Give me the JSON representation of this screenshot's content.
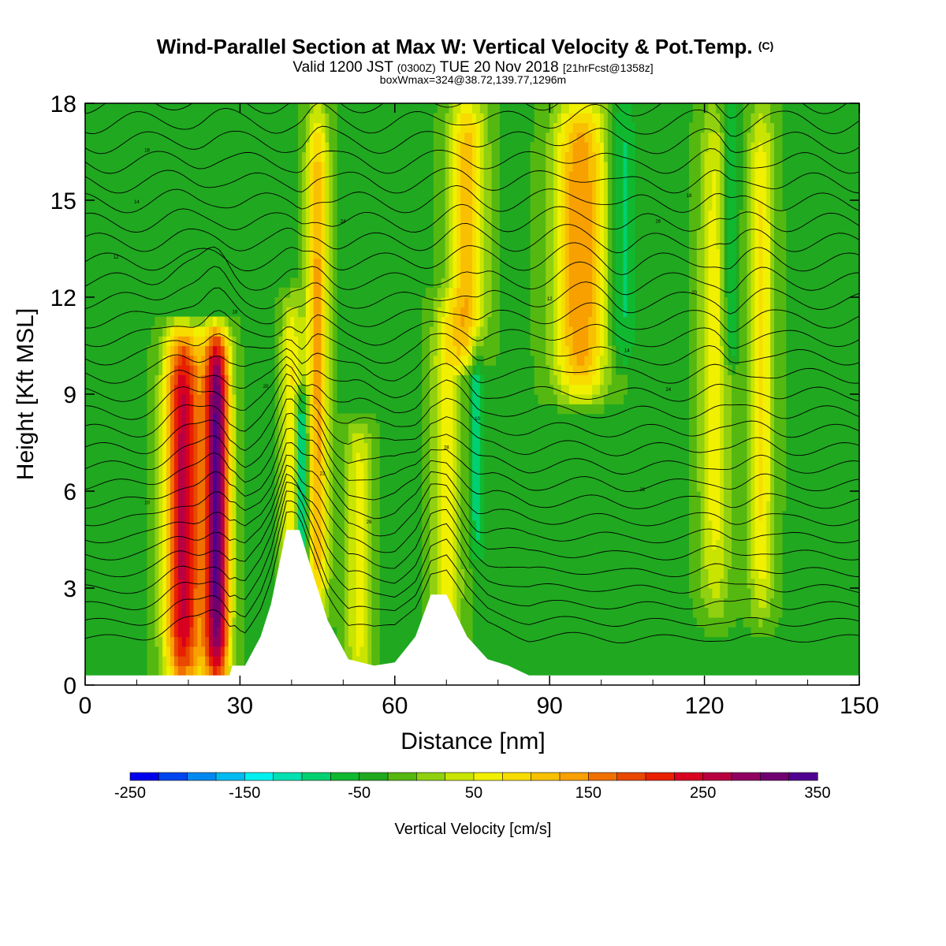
{
  "header": {
    "title": "Wind-Parallel Section at Max W: Vertical Velocity & Pot.Temp.",
    "copyright_mark": "(C)",
    "valid_prefix": "Valid 1200 JST",
    "valid_utc": "(0300Z)",
    "valid_date": "TUE 20 Nov 2018",
    "forecast_info": "[21hrFcst@1358z]",
    "box_info": "boxWmax=324@38.72,139.77,1296m"
  },
  "colorbar": {
    "label": "Vertical Velocity [cm/s]",
    "tick_labels": [
      "-250",
      "-150",
      "-50",
      "50",
      "150",
      "250",
      "350"
    ],
    "colors": [
      "#0000ee",
      "#0044ee",
      "#0088ee",
      "#00bbf0",
      "#00f0f0",
      "#00e0b0",
      "#00d070",
      "#10b830",
      "#20a820",
      "#55b810",
      "#90d010",
      "#c8e400",
      "#f0f000",
      "#f8dc00",
      "#f8c000",
      "#f8a000",
      "#f07000",
      "#e84800",
      "#e82000",
      "#d80020",
      "#b80040",
      "#900060",
      "#700070",
      "#500090"
    ]
  },
  "chart_data": {
    "type": "heatmap",
    "xlabel": "Distance [nm]",
    "ylabel": "Height [Kft MSL]",
    "xlim": [
      0,
      150
    ],
    "ylim": [
      0,
      18
    ],
    "x_ticks": [
      "0",
      "30",
      "60",
      "90",
      "120",
      "150"
    ],
    "y_ticks": [
      "0",
      "3",
      "6",
      "9",
      "12",
      "15",
      "18"
    ],
    "field": "Vertical Velocity [cm/s]",
    "background_value": -30,
    "updraft_columns": [
      {
        "x": 19,
        "w": 3.5,
        "peak": 260,
        "bottom": 0,
        "top": 11
      },
      {
        "x": 25.5,
        "w": 2.5,
        "peak": 324,
        "bottom": 0,
        "top": 11
      },
      {
        "x": 40,
        "w": 2,
        "peak": 80,
        "bottom": 0,
        "top": 12
      },
      {
        "x": 45,
        "w": 2.2,
        "peak": 130,
        "bottom": 2,
        "top": 18
      },
      {
        "x": 53,
        "w": 2.5,
        "peak": 60,
        "bottom": 0,
        "top": 8
      },
      {
        "x": 70,
        "w": 3,
        "peak": 60,
        "bottom": 0,
        "top": 12
      },
      {
        "x": 74,
        "w": 3.5,
        "peak": 120,
        "bottom": 10,
        "top": 18
      },
      {
        "x": 96,
        "w": 5,
        "peak": 150,
        "bottom": 9,
        "top": 18
      },
      {
        "x": 122,
        "w": 3,
        "peak": 60,
        "bottom": 2,
        "top": 18
      },
      {
        "x": 131,
        "w": 2.5,
        "peak": 80,
        "bottom": 2,
        "top": 18
      }
    ],
    "downdraft_columns": [
      {
        "x": 42,
        "w": 1.2,
        "peak": -170,
        "bottom": 3,
        "top": 9
      },
      {
        "x": 76,
        "w": 1.5,
        "peak": -90,
        "bottom": 4,
        "top": 11
      },
      {
        "x": 104,
        "w": 2.5,
        "peak": -90,
        "bottom": 10,
        "top": 18
      },
      {
        "x": 125,
        "w": 1.5,
        "peak": -100,
        "bottom": 10,
        "top": 18
      }
    ],
    "terrain_kft": [
      [
        0,
        0.3
      ],
      [
        28,
        0.3
      ],
      [
        28.5,
        0.6
      ],
      [
        31,
        0.6
      ],
      [
        34,
        1.5
      ],
      [
        36,
        2.5
      ],
      [
        39,
        4.8
      ],
      [
        41.5,
        4.8
      ],
      [
        44,
        3.5
      ],
      [
        47,
        2
      ],
      [
        51,
        0.8
      ],
      [
        56,
        0.6
      ],
      [
        60,
        0.7
      ],
      [
        64,
        1.5
      ],
      [
        67,
        2.8
      ],
      [
        70,
        2.8
      ],
      [
        74,
        1.5
      ],
      [
        78,
        0.8
      ],
      [
        82,
        0.6
      ],
      [
        86,
        0.3
      ],
      [
        150,
        0.3
      ]
    ],
    "theta_contour_labels": [
      "10",
      "12",
      "14",
      "16",
      "18",
      "20",
      "22",
      "24",
      "26",
      "28"
    ]
  }
}
